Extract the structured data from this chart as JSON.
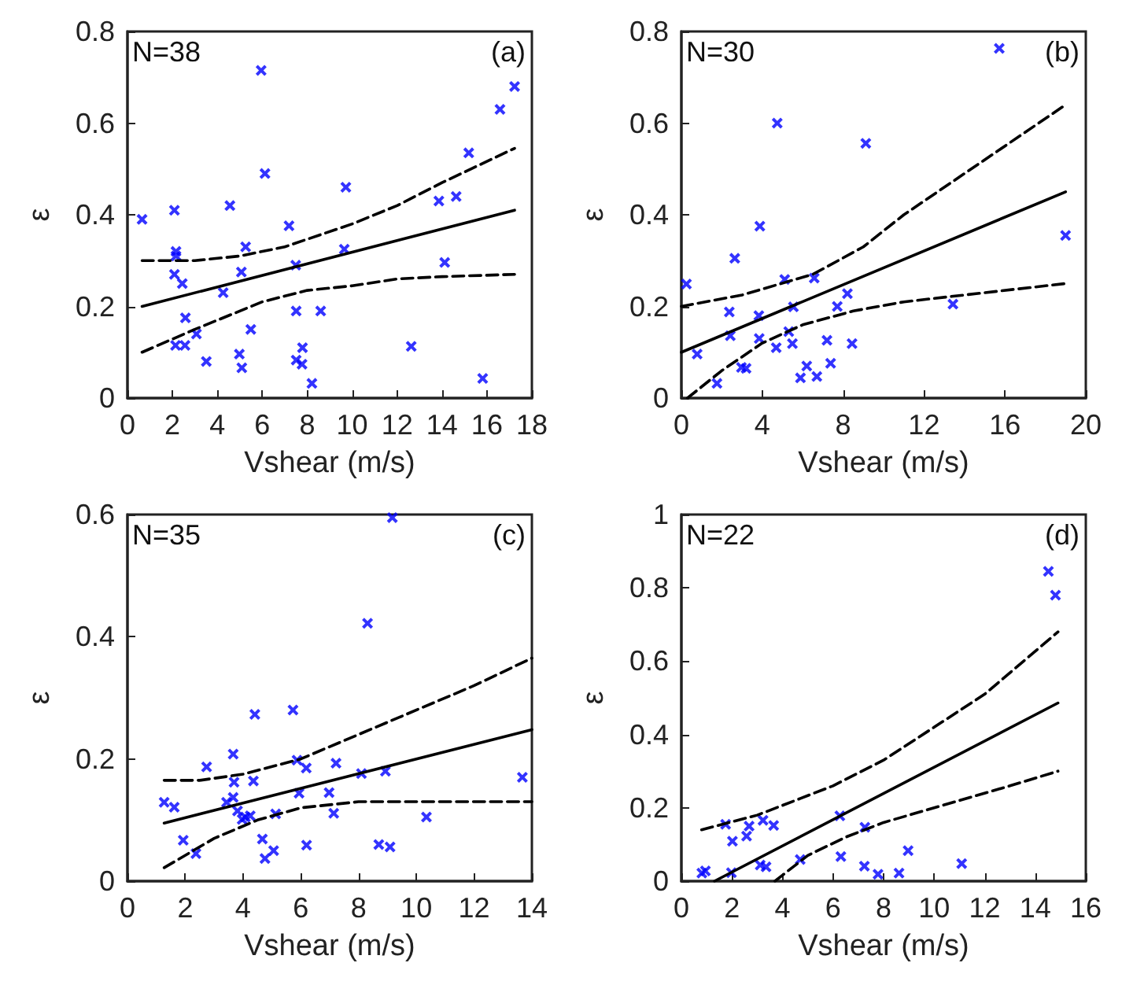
{
  "chart_data": [
    {
      "type": "scatter",
      "xlabel": "Vshear (m/s)",
      "ylabel": "ε",
      "annotations": [
        "N=38",
        "(a)"
      ],
      "xlim": [
        0,
        18
      ],
      "xticks": [
        0,
        2,
        4,
        6,
        8,
        10,
        12,
        14,
        16,
        18
      ],
      "ylim": [
        0,
        0.8
      ],
      "yticks": [
        0,
        0.2,
        0.4,
        0.6,
        0.8
      ],
      "series": [
        {
          "marker": "cross",
          "color": "#0000ff",
          "x": [
            0.65,
            2.09,
            2.16,
            2.16,
            2.09,
            2.44,
            2.14,
            2.56,
            2.58,
            3.07,
            3.51,
            4.26,
            4.56,
            4.98,
            5.09,
            5.07,
            5.26,
            5.49,
            5.95,
            6.12,
            7.19,
            7.49,
            7.51,
            7.51,
            7.79,
            7.77,
            8.21,
            8.6,
            9.72,
            9.65,
            12.63,
            13.86,
            14.12,
            14.63,
            15.19,
            15.81,
            16.58,
            17.23
          ],
          "values": [
            0.39,
            0.41,
            0.32,
            0.31,
            0.27,
            0.25,
            0.115,
            0.115,
            0.175,
            0.14,
            0.08,
            0.23,
            0.42,
            0.096,
            0.066,
            0.275,
            0.33,
            0.15,
            0.715,
            0.49,
            0.376,
            0.29,
            0.19,
            0.083,
            0.11,
            0.074,
            0.032,
            0.19,
            0.46,
            0.325,
            0.113,
            0.43,
            0.296,
            0.44,
            0.535,
            0.043,
            0.63,
            0.68
          ]
        },
        {
          "type": "line",
          "color": "#000000",
          "line_style": "solid",
          "x": [
            0.65,
            17.23
          ],
          "values": [
            0.2,
            0.41
          ]
        },
        {
          "type": "line",
          "color": "#000000",
          "line_style": "dashed",
          "x": [
            0.65,
            3,
            5,
            7,
            10,
            12,
            14,
            17.23
          ],
          "values": [
            0.3,
            0.3,
            0.31,
            0.33,
            0.38,
            0.42,
            0.47,
            0.545
          ]
        },
        {
          "type": "line",
          "color": "#000000",
          "line_style": "dashed",
          "x": [
            0.65,
            3,
            6,
            8,
            10,
            12,
            14,
            17.23
          ],
          "values": [
            0.1,
            0.15,
            0.21,
            0.235,
            0.245,
            0.26,
            0.265,
            0.27
          ]
        }
      ]
    },
    {
      "type": "scatter",
      "xlabel": "Vshear (m/s)",
      "ylabel": "ε",
      "annotations": [
        "N=30",
        "(b)"
      ],
      "xlim": [
        0,
        20
      ],
      "xticks": [
        0,
        4,
        8,
        12,
        16,
        20
      ],
      "ylim": [
        0,
        0.8
      ],
      "yticks": [
        0,
        0.2,
        0.4,
        0.6,
        0.8
      ],
      "series": [
        {
          "marker": "cross",
          "color": "#0000ff",
          "x": [
            0.25,
            0.78,
            1.76,
            2.37,
            2.42,
            2.64,
            2.97,
            3.2,
            3.83,
            3.85,
            3.88,
            4.69,
            4.74,
            5.11,
            5.31,
            5.49,
            5.54,
            5.89,
            6.2,
            6.57,
            6.7,
            7.2,
            7.38,
            7.71,
            8.21,
            8.44,
            9.12,
            13.43,
            15.72,
            19
          ],
          "values": [
            0.249,
            0.096,
            0.032,
            0.188,
            0.136,
            0.305,
            0.067,
            0.065,
            0.18,
            0.13,
            0.375,
            0.11,
            0.6,
            0.259,
            0.145,
            0.119,
            0.199,
            0.044,
            0.07,
            0.262,
            0.047,
            0.126,
            0.076,
            0.2,
            0.228,
            0.119,
            0.556,
            0.205,
            0.763,
            0.355
          ]
        },
        {
          "type": "line",
          "color": "#000000",
          "line_style": "solid",
          "x": [
            0,
            19
          ],
          "values": [
            0.1,
            0.45
          ]
        },
        {
          "type": "line",
          "color": "#000000",
          "line_style": "dashed",
          "x": [
            0,
            3,
            6.5,
            9,
            11,
            14,
            19
          ],
          "values": [
            0.2,
            0.225,
            0.27,
            0.33,
            0.4,
            0.49,
            0.64
          ]
        },
        {
          "type": "line",
          "color": "#000000",
          "line_style": "dashed",
          "x": [
            0.3,
            2,
            4,
            6,
            8.5,
            11,
            14,
            19
          ],
          "values": [
            0,
            0.06,
            0.12,
            0.16,
            0.19,
            0.21,
            0.225,
            0.25
          ]
        }
      ]
    },
    {
      "type": "scatter",
      "xlabel": "Vshear (m/s)",
      "ylabel": "ε",
      "annotations": [
        "N=35",
        "(c)"
      ],
      "xlim": [
        0,
        14
      ],
      "xticks": [
        0,
        2,
        4,
        6,
        8,
        10,
        12,
        14
      ],
      "ylim": [
        0,
        0.6
      ],
      "yticks": [
        0,
        0.2,
        0.4,
        0.6
      ],
      "series": [
        {
          "marker": "cross",
          "color": "#0000ff",
          "x": [
            1.27,
            1.62,
            1.93,
            2.37,
            2.74,
            3.43,
            3.66,
            3.69,
            3.66,
            3.81,
            3.97,
            4.08,
            4.25,
            4.36,
            4.41,
            4.67,
            4.76,
            5.06,
            5.13,
            5.73,
            5.87,
            5.94,
            6.19,
            6.2,
            6.98,
            7.14,
            7.22,
            8.1,
            8.31,
            8.7,
            8.93,
            9.09,
            9.17,
            10.35,
            13.67
          ],
          "values": [
            0.129,
            0.121,
            0.067,
            0.045,
            0.187,
            0.129,
            0.208,
            0.162,
            0.137,
            0.115,
            0.101,
            0.105,
            0.107,
            0.164,
            0.273,
            0.069,
            0.037,
            0.05,
            0.11,
            0.28,
            0.198,
            0.144,
            0.185,
            0.059,
            0.145,
            0.111,
            0.193,
            0.176,
            0.422,
            0.06,
            0.18,
            0.056,
            0.595,
            0.105,
            0.17
          ]
        },
        {
          "type": "line",
          "color": "#000000",
          "line_style": "solid",
          "x": [
            1.27,
            14
          ],
          "values": [
            0.095,
            0.248
          ]
        },
        {
          "type": "line",
          "color": "#000000",
          "line_style": "dashed",
          "x": [
            1.27,
            2.5,
            4,
            6,
            8,
            9.5,
            12,
            14
          ],
          "values": [
            0.165,
            0.165,
            0.175,
            0.2,
            0.24,
            0.27,
            0.32,
            0.365
          ]
        },
        {
          "type": "line",
          "color": "#000000",
          "line_style": "dashed",
          "x": [
            1.27,
            3,
            4.5,
            6,
            8,
            10,
            12,
            14
          ],
          "values": [
            0.022,
            0.07,
            0.1,
            0.12,
            0.13,
            0.13,
            0.13,
            0.13
          ]
        }
      ]
    },
    {
      "type": "scatter",
      "xlabel": "Vshear (m/s)",
      "ylabel": "ε",
      "annotations": [
        "N=22",
        "(d)"
      ],
      "xlim": [
        0,
        16
      ],
      "xticks": [
        0,
        2,
        4,
        6,
        8,
        10,
        12,
        14,
        16
      ],
      "ylim": [
        0,
        1
      ],
      "yticks": [
        0,
        0.2,
        0.4,
        0.6,
        0.8,
        1
      ],
      "series": [
        {
          "marker": "cross",
          "color": "#0000ff",
          "x": [
            0.81,
            0.95,
            1.75,
            1.98,
            2.02,
            2.58,
            2.68,
            3.12,
            3.23,
            3.35,
            3.65,
            4.7,
            6.27,
            6.31,
            7.26,
            7.24,
            7.78,
            8.61,
            8.97,
            11.09,
            14.52,
            14.8
          ],
          "values": [
            0.022,
            0.028,
            0.155,
            0.023,
            0.109,
            0.123,
            0.15,
            0.044,
            0.166,
            0.039,
            0.152,
            0.059,
            0.178,
            0.067,
            0.147,
            0.041,
            0.019,
            0.022,
            0.083,
            0.048,
            0.845,
            0.78
          ]
        },
        {
          "type": "line",
          "color": "#000000",
          "line_style": "solid",
          "x": [
            1.31,
            14.9
          ],
          "values": [
            0,
            0.486
          ]
        },
        {
          "type": "line",
          "color": "#000000",
          "line_style": "dashed",
          "x": [
            0.8,
            3,
            6,
            8,
            10,
            12,
            14.9
          ],
          "values": [
            0.14,
            0.18,
            0.26,
            0.33,
            0.42,
            0.51,
            0.68
          ]
        },
        {
          "type": "line",
          "color": "#000000",
          "line_style": "dashed",
          "x": [
            3.7,
            5,
            6.5,
            8,
            10,
            11.5,
            13,
            14.9
          ],
          "values": [
            0,
            0.07,
            0.12,
            0.16,
            0.2,
            0.23,
            0.26,
            0.3
          ]
        }
      ]
    }
  ]
}
